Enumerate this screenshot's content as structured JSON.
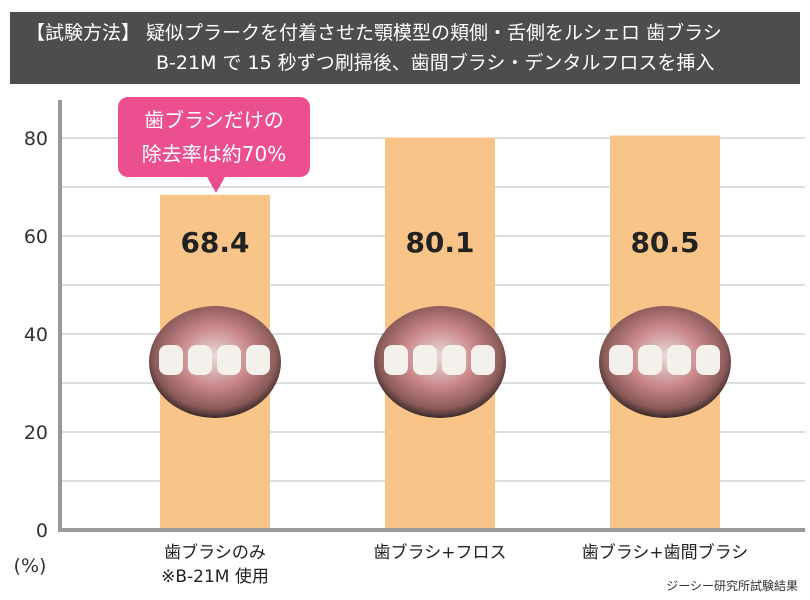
{
  "header": {
    "line1": "【試験方法】 疑似プラークを付着させた顎模型の頬側・舌側をルシェロ 歯ブラシ",
    "line2": "B-21M で 15 秒ずつ刷掃後、歯間ブラシ・デンタルフロスを挿入"
  },
  "callout": {
    "line1": "歯ブラシだけの",
    "line2": "除去率は約70%"
  },
  "source_note": "ジーシー研究所試験結果",
  "chart_data": {
    "type": "bar",
    "categories": [
      "歯ブラシのみ",
      "歯ブラシ+フロス",
      "歯ブラシ+歯間ブラシ"
    ],
    "category_sublabels": [
      "※B-21M 使用",
      "",
      ""
    ],
    "values": [
      68.4,
      80.1,
      80.5
    ],
    "value_labels": [
      "68.4",
      "80.1",
      "80.5"
    ],
    "ylabel": "(%)",
    "ylim": [
      0,
      80
    ],
    "yticks": [
      "0",
      "20",
      "40",
      "60",
      "80"
    ],
    "grid": true,
    "colors": {
      "bar": "#f8c488",
      "callout": "#ec4f8f",
      "header": "#4d4d4d",
      "axis": "#999999"
    }
  }
}
